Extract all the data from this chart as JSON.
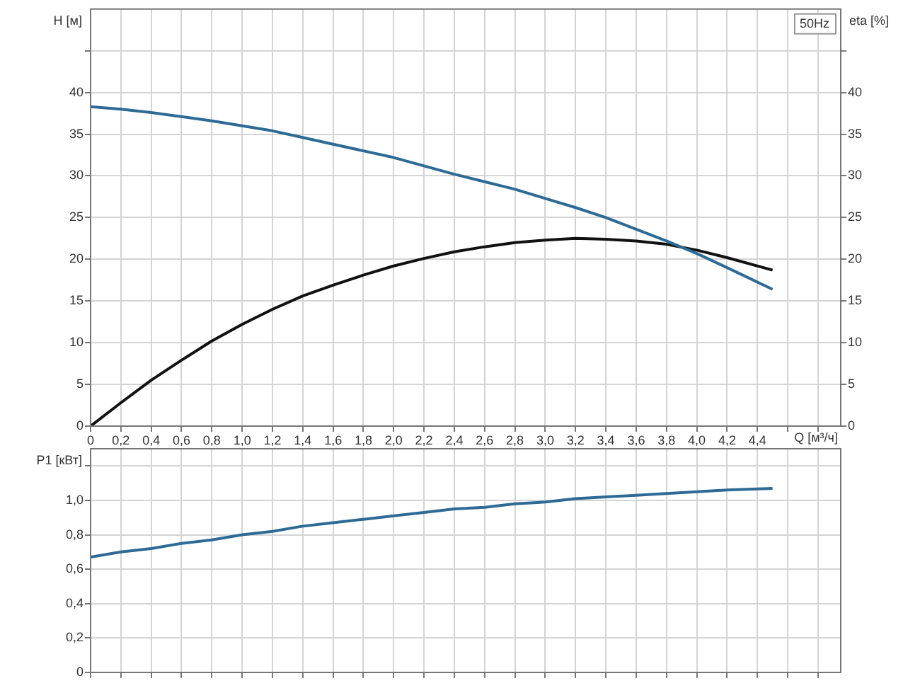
{
  "chart_data": [
    {
      "type": "line",
      "xlabel": "Q [м³/ч]",
      "ylabel": "H [м]",
      "y2label": "eta [%]",
      "annotations": [
        "50Hz"
      ],
      "x": [
        0,
        0.2,
        0.4,
        0.6,
        0.8,
        1.0,
        1.2,
        1.4,
        1.6,
        1.8,
        2.0,
        2.2,
        2.4,
        2.6,
        2.8,
        3.0,
        3.2,
        3.4,
        3.6,
        3.8,
        4.0,
        4.2,
        4.5
      ],
      "series": [
        {
          "color": "#2e6a96",
          "values": [
            38.3,
            38.0,
            37.6,
            37.1,
            36.6,
            36.0,
            35.4,
            34.6,
            33.8,
            33.0,
            32.2,
            31.2,
            30.2,
            29.3,
            28.4,
            27.3,
            26.2,
            25.0,
            23.6,
            22.2,
            20.7,
            19.0,
            16.4
          ]
        },
        {
          "color": "#111111",
          "axis": "y2",
          "values": [
            0,
            2.8,
            5.5,
            7.9,
            10.2,
            12.2,
            14.0,
            15.6,
            16.9,
            18.1,
            19.2,
            20.1,
            20.9,
            21.5,
            22.0,
            22.3,
            22.5,
            22.4,
            22.2,
            21.8,
            21.1,
            20.2,
            18.7
          ]
        }
      ],
      "xlim": [
        0,
        4.95
      ],
      "xticks": [
        0,
        {
          "value": 0.2,
          "label": "0,2"
        },
        {
          "value": 0.4,
          "label": "0,4"
        },
        {
          "value": 0.6,
          "label": "0,6"
        },
        {
          "value": 0.8,
          "label": "0,8"
        },
        {
          "value": 1.0,
          "label": "1,0"
        },
        {
          "value": 1.2,
          "label": "1,2"
        },
        {
          "value": 1.4,
          "label": "1,4"
        },
        {
          "value": 1.6,
          "label": "1,6"
        },
        {
          "value": 1.8,
          "label": "1,8"
        },
        {
          "value": 2.0,
          "label": "2,0"
        },
        {
          "value": 2.2,
          "label": "2,2"
        },
        {
          "value": 2.4,
          "label": "2,4"
        },
        {
          "value": 2.6,
          "label": "2,6"
        },
        {
          "value": 2.8,
          "label": "2,8"
        },
        {
          "value": 3.0,
          "label": "3,0"
        },
        {
          "value": 3.2,
          "label": "3,2"
        },
        {
          "value": 3.4,
          "label": "3,4"
        },
        {
          "value": 3.6,
          "label": "3,6"
        },
        {
          "value": 3.8,
          "label": "3,8"
        },
        {
          "value": 4.0,
          "label": "4,0"
        },
        {
          "value": 4.2,
          "label": "4,2"
        },
        {
          "value": 4.4,
          "label": "4,4"
        },
        {
          "value": 4.6,
          "label": null
        },
        {
          "value": 4.8,
          "label": null
        }
      ],
      "ylim": [
        0,
        50
      ],
      "yticks": [
        0,
        5,
        10,
        15,
        20,
        25,
        30,
        35,
        40,
        {
          "value": 45,
          "label": null
        }
      ],
      "y2lim": [
        0,
        50
      ],
      "y2ticks": [
        0,
        5,
        10,
        15,
        20,
        25,
        30,
        35,
        40,
        {
          "value": 45,
          "label": null
        }
      ],
      "grid": true,
      "legend": false,
      "marker": "none"
    },
    {
      "type": "line",
      "ylabel": "P1 [кВт]",
      "x": [
        0,
        0.2,
        0.4,
        0.6,
        0.8,
        1.0,
        1.2,
        1.4,
        1.6,
        1.8,
        2.0,
        2.2,
        2.4,
        2.6,
        2.8,
        3.0,
        3.2,
        3.4,
        3.6,
        3.8,
        4.0,
        4.2,
        4.5
      ],
      "series": [
        {
          "color": "#2e6a96",
          "values": [
            0.67,
            0.7,
            0.72,
            0.75,
            0.77,
            0.8,
            0.82,
            0.85,
            0.87,
            0.89,
            0.91,
            0.93,
            0.95,
            0.96,
            0.98,
            0.99,
            1.01,
            1.02,
            1.03,
            1.04,
            1.05,
            1.06,
            1.07
          ]
        }
      ],
      "xlim": [
        0,
        4.95
      ],
      "xticks": [
        0,
        0.2,
        0.4,
        0.6,
        0.8,
        1.0,
        1.2,
        1.4,
        1.6,
        1.8,
        2.0,
        2.2,
        2.4,
        2.6,
        2.8,
        3.0,
        3.2,
        3.4,
        3.6,
        3.8,
        4.0,
        4.2,
        4.4,
        4.6,
        4.8
      ],
      "ylim": [
        0,
        1.3
      ],
      "yticks": [
        0,
        {
          "value": 0.2,
          "label": "0,2"
        },
        {
          "value": 0.4,
          "label": "0,4"
        },
        {
          "value": 0.6,
          "label": "0,6"
        },
        {
          "value": 0.8,
          "label": "0,8"
        },
        {
          "value": 1.0,
          "label": "1,0"
        },
        {
          "value": 1.2,
          "label": null
        }
      ],
      "tick_labels": "y",
      "grid": true,
      "legend": false,
      "marker": "none"
    }
  ]
}
